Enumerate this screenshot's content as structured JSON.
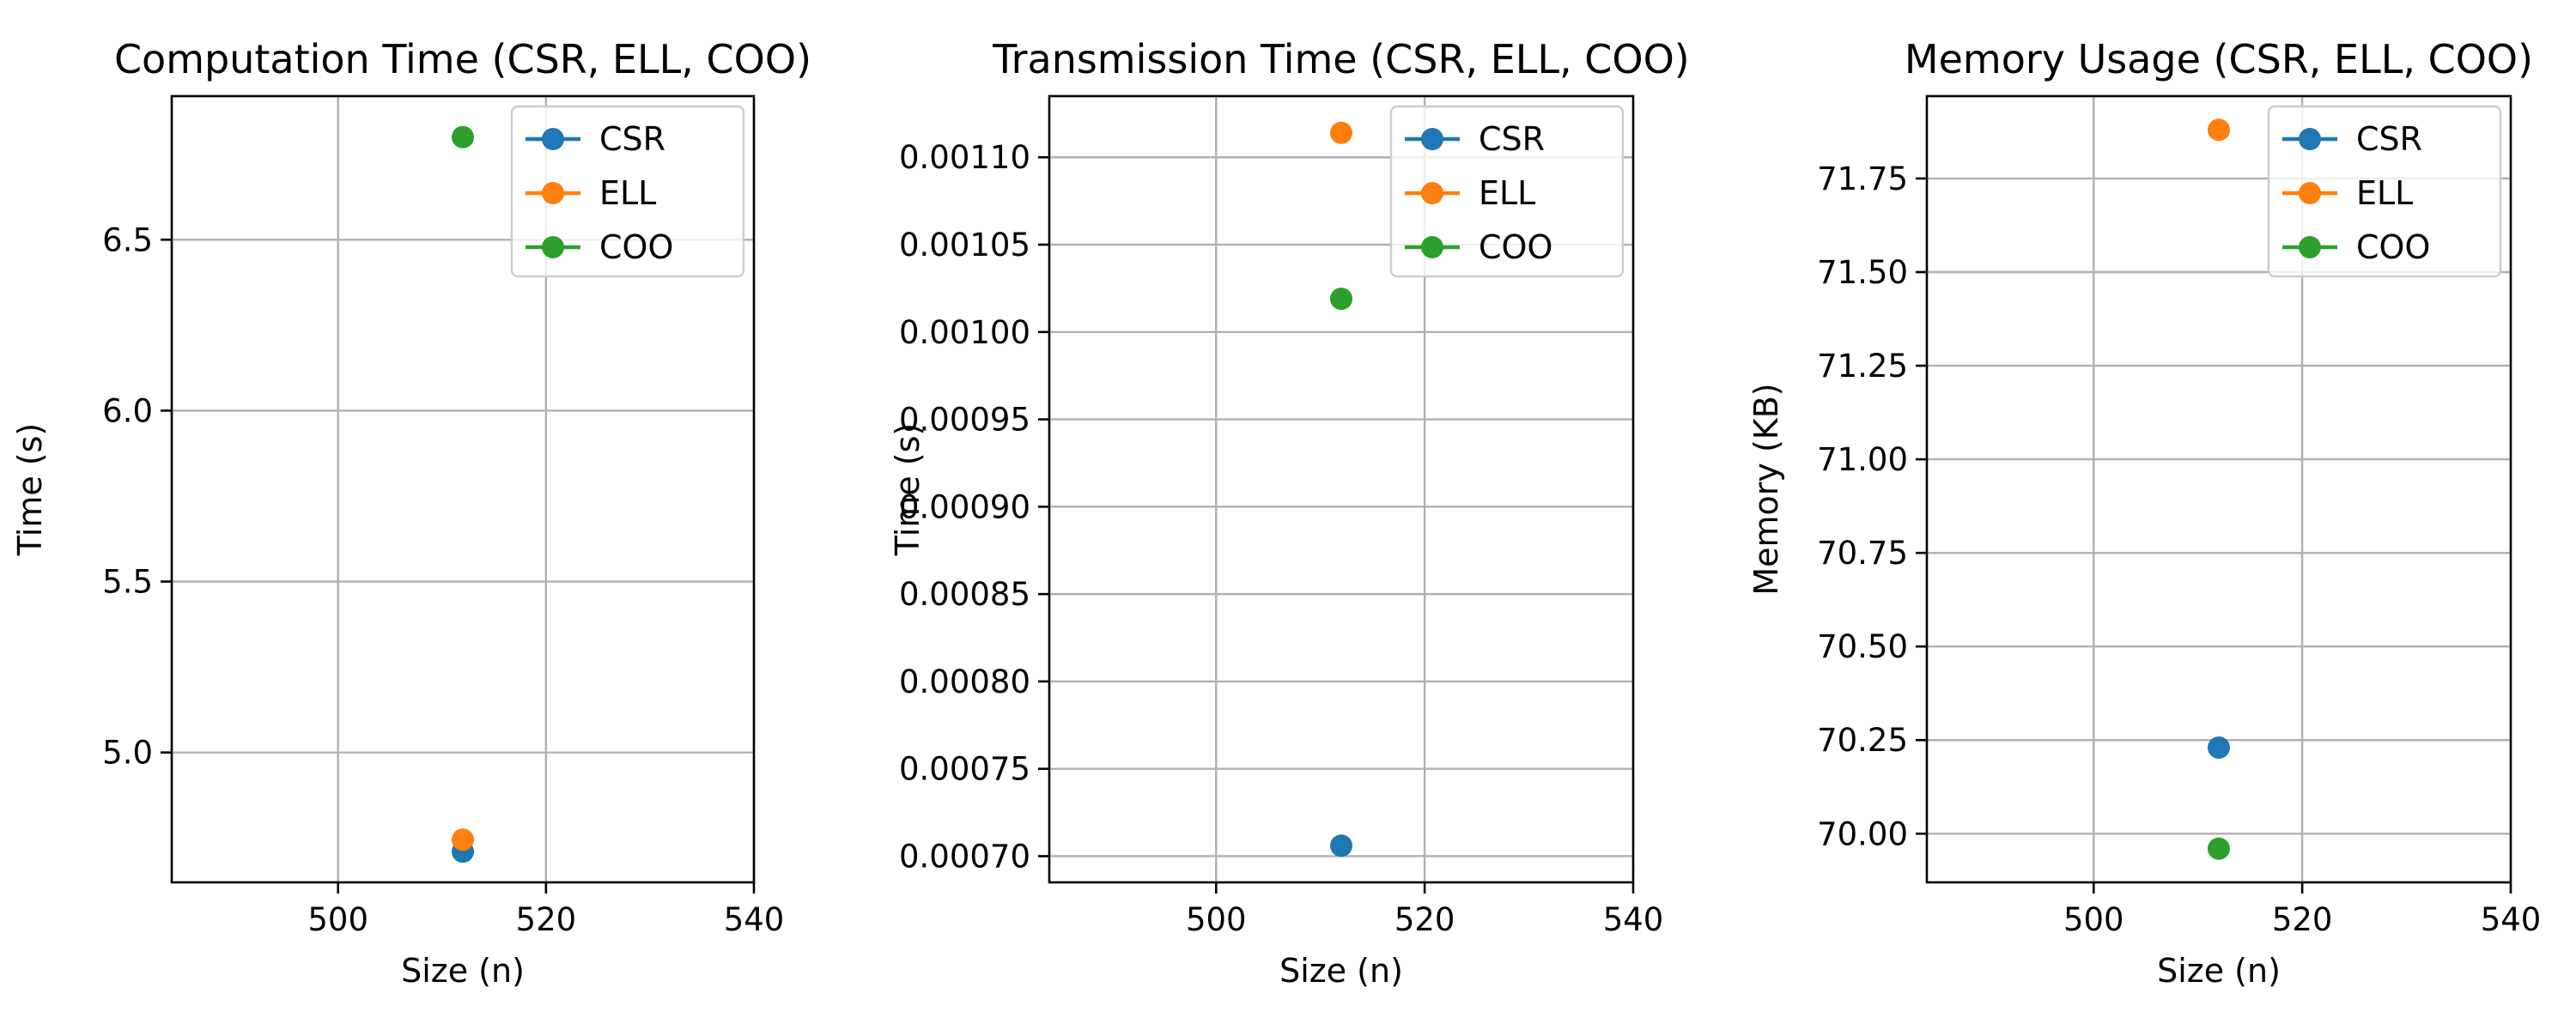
{
  "chart_data": [
    {
      "type": "scatter",
      "title": "Computation Time (CSR, ELL, COO)",
      "xlabel": "Size (n)",
      "ylabel": "Time (s)",
      "xlim": [
        484,
        540
      ],
      "ylim": [
        4.62,
        6.92
      ],
      "xticks": [
        500,
        520,
        540
      ],
      "xtick_labels": [
        "500",
        "520",
        "540"
      ],
      "yticks": [
        5.0,
        5.5,
        6.0,
        6.5
      ],
      "ytick_labels": [
        "5.0",
        "5.5",
        "6.0",
        "6.5"
      ],
      "grid": true,
      "legend": "top-right",
      "series": [
        {
          "name": "CSR",
          "color": "#1f77b4",
          "x": [
            512
          ],
          "y": [
            4.71
          ]
        },
        {
          "name": "ELL",
          "color": "#ff7f0e",
          "x": [
            512
          ],
          "y": [
            4.745
          ]
        },
        {
          "name": "COO",
          "color": "#2ca02c",
          "x": [
            512
          ],
          "y": [
            6.8
          ]
        }
      ]
    },
    {
      "type": "scatter",
      "title": "Transmission Time (CSR, ELL, COO)",
      "xlabel": "Size (n)",
      "ylabel": "Time (s)",
      "xlim": [
        484,
        540
      ],
      "ylim": [
        0.000685,
        0.001135
      ],
      "xticks": [
        500,
        520,
        540
      ],
      "xtick_labels": [
        "500",
        "520",
        "540"
      ],
      "yticks": [
        0.0007,
        0.00075,
        0.0008,
        0.00085,
        0.0009,
        0.00095,
        0.001,
        0.00105,
        0.0011
      ],
      "ytick_labels": [
        "0.00070",
        "0.00075",
        "0.00080",
        "0.00085",
        "0.00090",
        "0.00095",
        "0.00100",
        "0.00105",
        "0.00110"
      ],
      "grid": true,
      "legend": "top-right",
      "series": [
        {
          "name": "CSR",
          "color": "#1f77b4",
          "x": [
            512
          ],
          "y": [
            0.000706
          ]
        },
        {
          "name": "ELL",
          "color": "#ff7f0e",
          "x": [
            512
          ],
          "y": [
            0.001114
          ]
        },
        {
          "name": "COO",
          "color": "#2ca02c",
          "x": [
            512
          ],
          "y": [
            0.001019
          ]
        }
      ]
    },
    {
      "type": "scatter",
      "title": "Memory Usage (CSR, ELL, COO)",
      "xlabel": "Size (n)",
      "ylabel": "Memory (KB)",
      "xlim": [
        484,
        540
      ],
      "ylim": [
        69.87,
        71.97
      ],
      "xticks": [
        500,
        520,
        540
      ],
      "xtick_labels": [
        "500",
        "520",
        "540"
      ],
      "yticks": [
        70.0,
        70.25,
        70.5,
        70.75,
        71.0,
        71.25,
        71.5,
        71.75
      ],
      "ytick_labels": [
        "70.00",
        "70.25",
        "70.50",
        "70.75",
        "71.00",
        "71.25",
        "71.50",
        "71.75"
      ],
      "grid": true,
      "legend": "top-right",
      "series": [
        {
          "name": "CSR",
          "color": "#1f77b4",
          "x": [
            512
          ],
          "y": [
            70.23
          ]
        },
        {
          "name": "ELL",
          "color": "#ff7f0e",
          "x": [
            512
          ],
          "y": [
            71.88
          ]
        },
        {
          "name": "COO",
          "color": "#2ca02c",
          "x": [
            512
          ],
          "y": [
            69.96
          ]
        }
      ]
    }
  ]
}
